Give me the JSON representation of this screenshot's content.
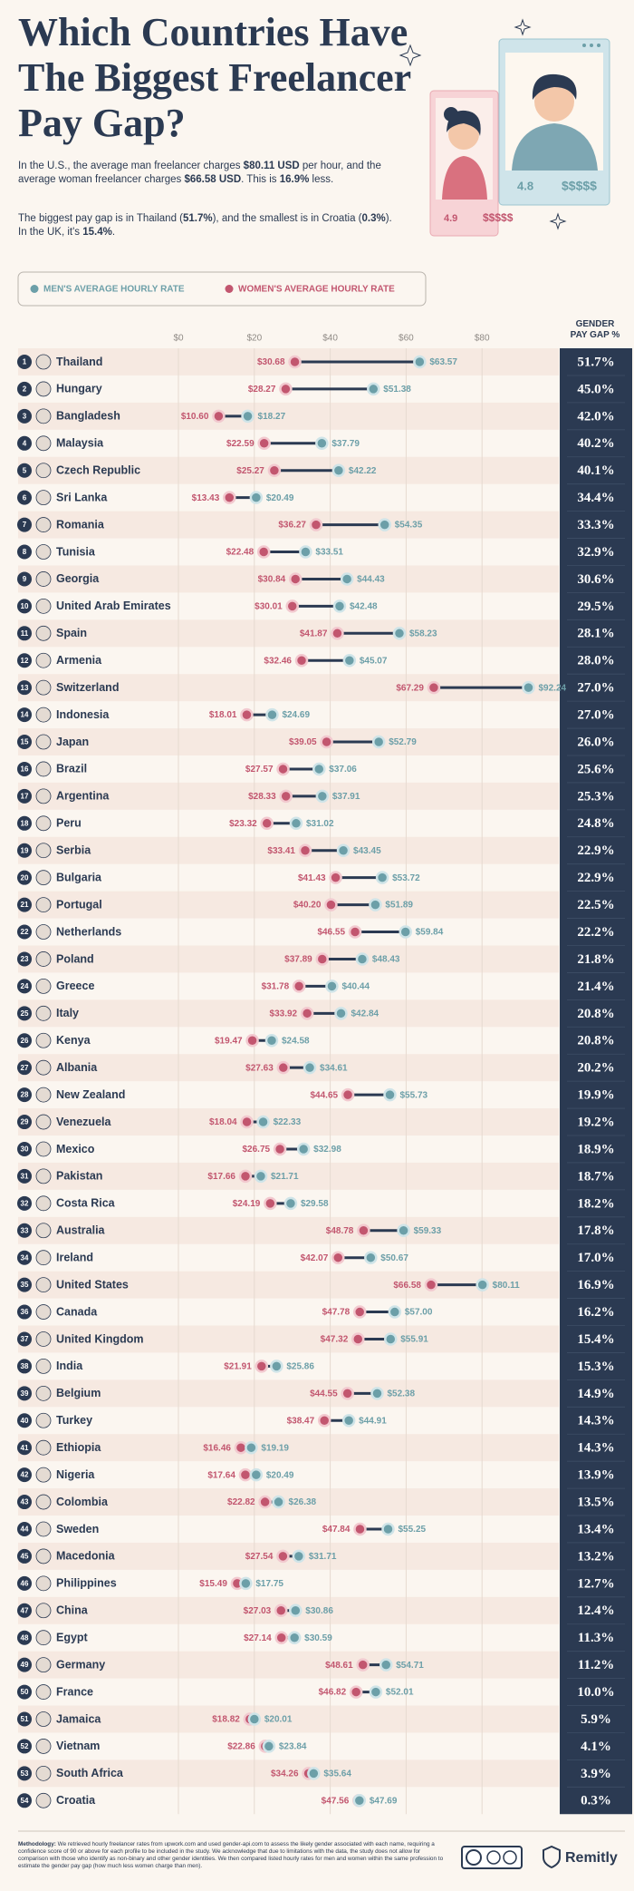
{
  "title_lines": [
    "Which Countries Have",
    "The Biggest Freelancer",
    "Pay Gap?"
  ],
  "intro": [
    [
      {
        "text": "In the U.S., the average man freelancer charges ",
        "bold": false
      },
      {
        "text": "$80.11 USD",
        "bold": true
      },
      {
        "text": " per hour, and the average woman freelancer charges ",
        "bold": false
      },
      {
        "text": "$66.58 USD",
        "bold": true
      },
      {
        "text": ". This is ",
        "bold": false
      },
      {
        "text": "16.9%",
        "bold": true
      },
      {
        "text": " less.",
        "bold": false
      }
    ],
    [
      {
        "text": "The biggest pay gap is in Thailand (",
        "bold": false
      },
      {
        "text": "51.7%",
        "bold": true
      },
      {
        "text": "), and the smallest is in Croatia (",
        "bold": false
      },
      {
        "text": "0.3%",
        "bold": true
      },
      {
        "text": "). In the UK, it's ",
        "bold": false
      },
      {
        "text": "15.4%",
        "bold": true
      },
      {
        "text": ".",
        "bold": false
      }
    ]
  ],
  "illustration": {
    "men_rating": 4.8,
    "men_price": "$$$$$",
    "women_rating": 4.9,
    "women_price": "$$$$$"
  },
  "chart_data": {
    "type": "dumbbell",
    "xlim": [
      0,
      100
    ],
    "xticks": [
      {
        "value": 0,
        "label": "$0"
      },
      {
        "value": 20,
        "label": "$20"
      },
      {
        "value": 40,
        "label": "$40"
      },
      {
        "value": 60,
        "label": "$60"
      },
      {
        "value": 80,
        "label": "$80"
      }
    ],
    "grid": true,
    "ranks": [
      1,
      2,
      3,
      4,
      5,
      6,
      7,
      8,
      9,
      10,
      11,
      12,
      13,
      14,
      15,
      16,
      17,
      18,
      19,
      20,
      21,
      22,
      23,
      24,
      25,
      26,
      27,
      28,
      29,
      30,
      31,
      32,
      33,
      34,
      35,
      36,
      37,
      38,
      39,
      40,
      41,
      42,
      43,
      44,
      45,
      46,
      47,
      48,
      49,
      50,
      51,
      52,
      53,
      54
    ],
    "categories": [
      "Thailand",
      "Hungary",
      "Bangladesh",
      "Malaysia",
      "Czech Republic",
      "Sri Lanka",
      "Romania",
      "Tunisia",
      "Georgia",
      "United Arab Emirates",
      "Spain",
      "Armenia",
      "Switzerland",
      "Indonesia",
      "Japan",
      "Brazil",
      "Argentina",
      "Peru",
      "Serbia",
      "Bulgaria",
      "Portugal",
      "Netherlands",
      "Poland",
      "Greece",
      "Italy",
      "Kenya",
      "Albania",
      "New Zealand",
      "Venezuela",
      "Mexico",
      "Pakistan",
      "Costa Rica",
      "Australia",
      "Ireland",
      "United States",
      "Canada",
      "United Kingdom",
      "India",
      "Belgium",
      "Turkey",
      "Ethiopia",
      "Nigeria",
      "Colombia",
      "Sweden",
      "Macedonia",
      "Philippines",
      "China",
      "Egypt",
      "Germany",
      "France",
      "Jamaica",
      "Vietnam",
      "South Africa",
      "Croatia"
    ],
    "series": [
      {
        "name": "MEN'S AVERAGE HOURLY RATE",
        "color": "#6c9fa8",
        "values": [
          63.57,
          51.38,
          18.27,
          37.79,
          42.22,
          20.49,
          54.35,
          33.51,
          44.43,
          42.48,
          58.23,
          45.07,
          92.24,
          24.69,
          52.79,
          37.06,
          37.91,
          31.02,
          43.45,
          53.72,
          51.89,
          59.84,
          48.43,
          40.44,
          42.84,
          24.58,
          34.61,
          55.73,
          22.33,
          32.98,
          21.71,
          29.58,
          59.33,
          50.67,
          80.11,
          57.0,
          55.91,
          25.86,
          52.38,
          44.91,
          19.19,
          20.49,
          26.38,
          55.25,
          31.71,
          17.75,
          30.86,
          30.59,
          54.71,
          52.01,
          20.01,
          23.84,
          35.64,
          47.69
        ],
        "value_labels": [
          "$63.57",
          "$51.38",
          "$18.27",
          "$37.79",
          "$42.22",
          "$20.49",
          "$54.35",
          "$33.51",
          "$44.43",
          "$42.48",
          "$58.23",
          "$45.07",
          "$92.24",
          "$24.69",
          "$52.79",
          "$37.06",
          "$37.91",
          "$31.02",
          "$43.45",
          "$53.72",
          "$51.89",
          "$59.84",
          "$48.43",
          "$40.44",
          "$42.84",
          "$24.58",
          "$34.61",
          "$55.73",
          "$22.33",
          "$32.98",
          "$21.71",
          "$29.58",
          "$59.33",
          "$50.67",
          "$80.11",
          "$57.00",
          "$55.91",
          "$25.86",
          "$52.38",
          "$44.91",
          "$19.19",
          "$20.49",
          "$26.38",
          "$55.25",
          "$31.71",
          "$17.75",
          "$30.86",
          "$30.59",
          "$54.71",
          "$52.01",
          "$20.01",
          "$23.84",
          "$35.64",
          "$47.69"
        ]
      },
      {
        "name": "WOMEN'S AVERAGE HOURLY RATE",
        "color": "#c2566f",
        "values": [
          30.68,
          28.27,
          10.6,
          22.59,
          25.27,
          13.43,
          36.27,
          22.48,
          30.84,
          30.01,
          41.87,
          32.46,
          67.29,
          18.01,
          39.05,
          27.57,
          28.33,
          23.32,
          33.41,
          41.43,
          40.2,
          46.55,
          37.89,
          31.78,
          33.92,
          19.47,
          27.63,
          44.65,
          18.04,
          26.75,
          17.66,
          24.19,
          48.78,
          42.07,
          66.58,
          47.78,
          47.32,
          21.91,
          44.55,
          38.47,
          16.46,
          17.64,
          22.82,
          47.84,
          27.54,
          15.49,
          27.03,
          27.14,
          48.61,
          46.82,
          18.82,
          22.86,
          34.26,
          47.56
        ],
        "value_labels": [
          "$30.68",
          "$28.27",
          "$10.60",
          "$22.59",
          "$25.27",
          "$13.43",
          "$36.27",
          "$22.48",
          "$30.84",
          "$30.01",
          "$41.87",
          "$32.46",
          "$67.29",
          "$18.01",
          "$39.05",
          "$27.57",
          "$28.33",
          "$23.32",
          "$33.41",
          "$41.43",
          "$40.20",
          "$46.55",
          "$37.89",
          "$31.78",
          "$33.92",
          "$19.47",
          "$27.63",
          "$44.65",
          "$18.04",
          "$26.75",
          "$17.66",
          "$24.19",
          "$48.78",
          "$42.07",
          "$66.58",
          "$47.78",
          "$47.32",
          "$21.91",
          "$44.55",
          "$38.47",
          "$16.46",
          "$17.64",
          "$22.82",
          "$47.84",
          "$27.54",
          "$15.49",
          "$27.03",
          "$27.14",
          "$48.61",
          "$46.82",
          "$18.82",
          "$22.86",
          "$34.26",
          "$47.56"
        ]
      }
    ],
    "gap": {
      "header": "GENDER PAY GAP %",
      "values": [
        51.7,
        45.0,
        42.0,
        40.2,
        40.1,
        34.4,
        33.3,
        32.9,
        30.6,
        29.5,
        28.1,
        28.0,
        27.0,
        27.0,
        26.0,
        25.6,
        25.3,
        24.8,
        22.9,
        22.9,
        22.5,
        22.2,
        21.8,
        21.4,
        20.8,
        20.8,
        20.2,
        19.9,
        19.2,
        18.9,
        18.7,
        18.2,
        17.8,
        17.0,
        16.9,
        16.2,
        15.4,
        15.3,
        14.9,
        14.3,
        14.3,
        13.9,
        13.5,
        13.4,
        13.2,
        12.7,
        12.4,
        11.3,
        11.2,
        10.0,
        5.9,
        4.1,
        3.9,
        0.3
      ],
      "value_labels": [
        "51.7%",
        "45.0%",
        "42.0%",
        "40.2%",
        "40.1%",
        "34.4%",
        "33.3%",
        "32.9%",
        "30.6%",
        "29.5%",
        "28.1%",
        "28.0%",
        "27.0%",
        "27.0%",
        "26.0%",
        "25.6%",
        "25.3%",
        "24.8%",
        "22.9%",
        "22.9%",
        "22.5%",
        "22.2%",
        "21.8%",
        "21.4%",
        "20.8%",
        "20.8%",
        "20.2%",
        "19.9%",
        "19.2%",
        "18.9%",
        "18.7%",
        "18.2%",
        "17.8%",
        "17.0%",
        "16.9%",
        "16.2%",
        "15.4%",
        "15.3%",
        "14.9%",
        "14.3%",
        "14.3%",
        "13.9%",
        "13.5%",
        "13.4%",
        "13.2%",
        "12.7%",
        "12.4%",
        "11.3%",
        "11.2%",
        "10.0%",
        "5.9%",
        "4.1%",
        "3.9%",
        "0.3%"
      ]
    }
  },
  "footer": {
    "methodology_label": "Methodology:",
    "methodology": " We retrieved hourly freelancer rates from upwork.com and used gender-api.com to assess the likely gender associated with each name, requiring a confidence score of 90 or above for each profile to be included in the study. We acknowledge that due to limitations with the data, the study does not allow for comparison with those who identify as non-binary and other gender identities. We then compared listed hourly rates for men and women within the same profession to estimate the gender pay gap (how much less women charge than men).",
    "brand": "Remitly"
  }
}
